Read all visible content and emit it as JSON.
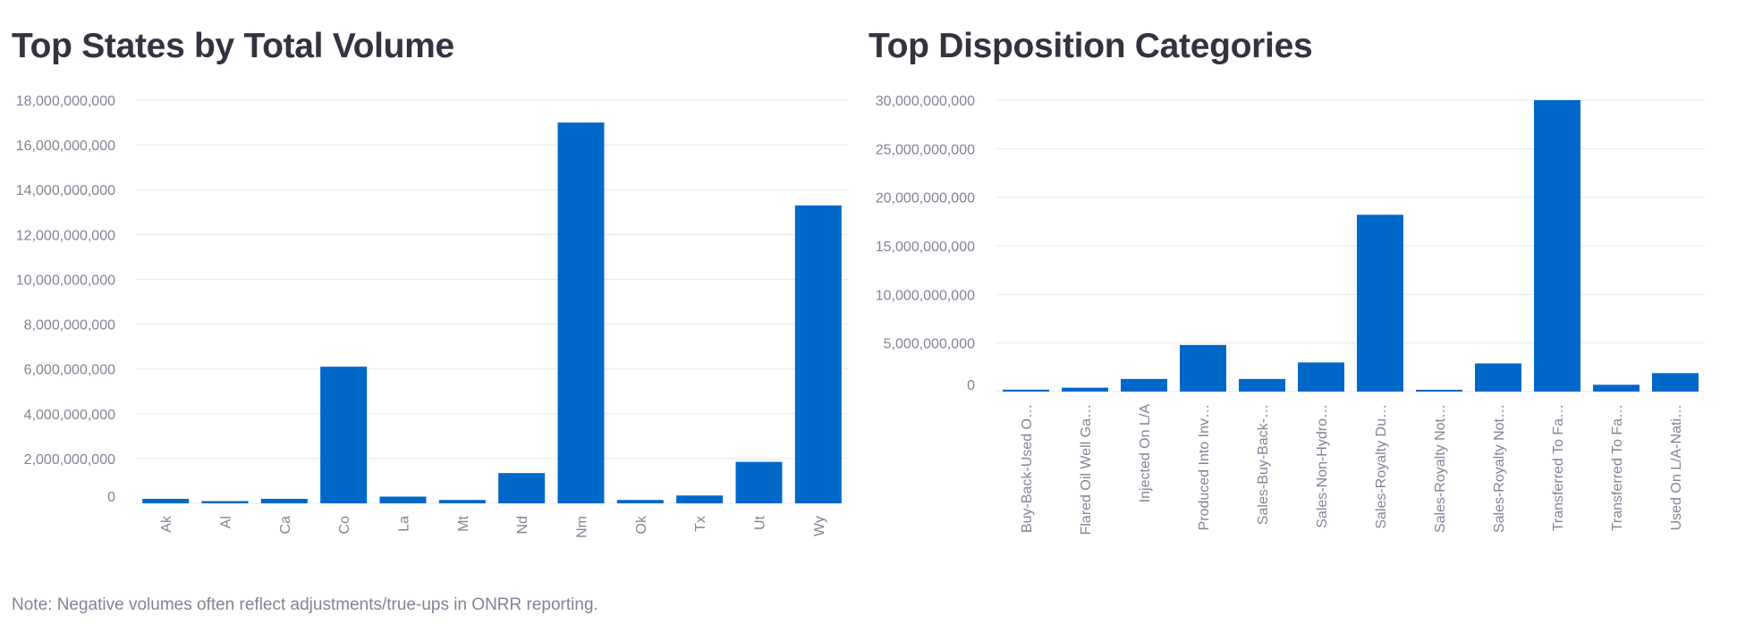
{
  "chart_data": [
    {
      "type": "bar",
      "title": "Top States by Total Volume",
      "categories": [
        "Ak",
        "Al",
        "Ca",
        "Co",
        "La",
        "Mt",
        "Nd",
        "Nm",
        "Ok",
        "Tx",
        "Ut",
        "Wy"
      ],
      "values": [
        200000000,
        100000000,
        200000000,
        6100000000,
        300000000,
        150000000,
        1350000000,
        17000000000,
        150000000,
        350000000,
        1850000000,
        13300000000
      ],
      "yticks": [
        "0",
        "2,000,000,000",
        "4,000,000,000",
        "6,000,000,000",
        "8,000,000,000",
        "10,000,000,000",
        "12,000,000,000",
        "14,000,000,000",
        "16,000,000,000",
        "18,000,000,000"
      ],
      "ylim": [
        0,
        18000000000
      ],
      "xlabel": "",
      "ylabel": "",
      "grid": true
    },
    {
      "type": "bar",
      "title": "Top Disposition Categories",
      "categories": [
        "Buy-Back-Used O…",
        "Flared Oil Well Ga…",
        "Injected On L/A",
        "Produced Into Inv…",
        "Sales-Buy-Back-…",
        "Sales-Non-Hydro…",
        "Sales-Royalty Du…",
        "Sales-Royalty Not…",
        "Sales-Royalty Not…",
        "Transferred To Fa…",
        "Transferred To Fa…",
        "Used On L/A-Nati…"
      ],
      "values": [
        200000000,
        400000000,
        1300000000,
        4800000000,
        1300000000,
        3000000000,
        18200000000,
        100000000,
        2900000000,
        30000000000,
        700000000,
        1900000000
      ],
      "yticks": [
        "0",
        "5,000,000,000",
        "10,000,000,000",
        "15,000,000,000",
        "20,000,000,000",
        "25,000,000,000",
        "30,000,000,000"
      ],
      "ylim": [
        0,
        30000000000
      ],
      "xlabel": "",
      "ylabel": "",
      "grid": true
    }
  ],
  "note": "Note: Negative volumes often reflect adjustments/true-ups in ONRR reporting."
}
